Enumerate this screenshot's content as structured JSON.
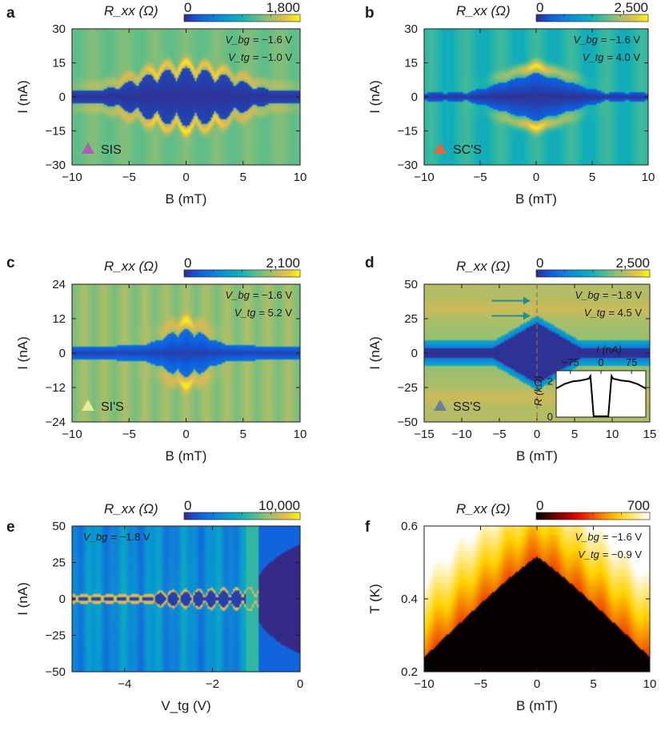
{
  "chart_data": [
    {
      "type": "heatmap",
      "label": "a",
      "colorbar": {
        "title": "R_xx (Ω)",
        "min": "0",
        "max": "1,800",
        "cmap": "parula"
      },
      "xlabel": "B (mT)",
      "ylabel": "I (nA)",
      "xlim": [
        -10,
        10
      ],
      "ylim": [
        -30,
        30
      ],
      "xticks": [
        -10,
        -5,
        0,
        5,
        10
      ],
      "yticks": [
        -30,
        -15,
        0,
        15,
        30
      ],
      "annotations": [
        {
          "name": "V_bg",
          "value": "= −1.6 V"
        },
        {
          "name": "V_tg",
          "value": "= −1.0 V"
        }
      ],
      "marker": {
        "text": "SIS",
        "color": "#b45cb4"
      },
      "features": {
        "kind": "fraunhofer",
        "center_halfwidth": 13,
        "period": 1.7,
        "bg": 0.66,
        "peak_extent": 20
      }
    },
    {
      "type": "heatmap",
      "label": "b",
      "colorbar": {
        "title": "R_xx (Ω)",
        "min": "0",
        "max": "2,500",
        "cmap": "parula"
      },
      "xlabel": "B (mT)",
      "ylabel": "I (nA)",
      "xlim": [
        -10,
        10
      ],
      "ylim": [
        -30,
        30
      ],
      "xticks": [
        -10,
        -5,
        0,
        5,
        10
      ],
      "yticks": [
        -30,
        -15,
        0,
        15,
        30
      ],
      "annotations": [
        {
          "name": "V_bg",
          "value": "= −1.6 V"
        },
        {
          "name": "V_tg",
          "value": "= 4.0 V"
        }
      ],
      "marker": {
        "text": "SC'S",
        "color": "#e8653a"
      },
      "features": {
        "kind": "diamond",
        "center_halfwidth": 10,
        "b_extent": 7,
        "bg": 0.52,
        "peak_extent": 17
      }
    },
    {
      "type": "heatmap",
      "label": "c",
      "colorbar": {
        "title": "R_xx (Ω)",
        "min": "0",
        "max": "2,100",
        "cmap": "parula"
      },
      "xlabel": "B (mT)",
      "ylabel": "I (nA)",
      "xlim": [
        -10,
        10
      ],
      "ylim": [
        -24,
        24
      ],
      "xticks": [
        -10,
        -5,
        0,
        5,
        10
      ],
      "yticks": [
        -24,
        -12,
        0,
        12,
        24
      ],
      "annotations": [
        {
          "name": "V_bg",
          "value": "= −1.6 V"
        },
        {
          "name": "V_tg",
          "value": "= 5.2 V"
        }
      ],
      "marker": {
        "text": "SI'S",
        "color": "#e6ec96"
      },
      "features": {
        "kind": "band",
        "center_halfwidth": 6,
        "period": 1.4,
        "bg": 0.72,
        "peak_extent": 13
      }
    },
    {
      "type": "heatmap",
      "label": "d",
      "colorbar": {
        "title": "R_xx (Ω)",
        "min": "0",
        "max": "2,500",
        "cmap": "parula"
      },
      "xlabel": "B (mT)",
      "ylabel": "I (nA)",
      "xlim": [
        -15,
        15
      ],
      "ylim": [
        -50,
        50
      ],
      "xticks": [
        -15,
        -10,
        -5,
        0,
        5,
        10,
        15
      ],
      "yticks": [
        -50,
        -25,
        0,
        25,
        50
      ],
      "annotations": [
        {
          "name": "V_bg",
          "value": "= −1.8 V"
        },
        {
          "name": "V_tg",
          "value": "= 4.5 V"
        }
      ],
      "marker": {
        "text": "SS'S",
        "color": "#6a7f96"
      },
      "features": {
        "kind": "supercurrent",
        "center_halfwidth": 22,
        "b_extent": 7,
        "bg": 0.8
      },
      "arrows_at_I": [
        38,
        27
      ],
      "dashed_line_at_B": 0,
      "inset": {
        "xlabel": "I (nA)",
        "ylabel": "R (kΩ)",
        "xticks": [
          -75,
          0,
          75
        ],
        "yticks": [
          0,
          2
        ],
        "xlim": [
          -110,
          110
        ],
        "ylim": [
          0,
          2.6
        ],
        "x": [
          -110,
          -90,
          -70,
          -50,
          -30,
          -26,
          -22,
          -18,
          18,
          22,
          26,
          30,
          50,
          70,
          90,
          110
        ],
        "y": [
          1.6,
          1.85,
          2.0,
          2.05,
          2.15,
          2.3,
          1.2,
          0.05,
          0.05,
          1.2,
          2.3,
          2.15,
          2.05,
          2.0,
          1.85,
          1.6
        ]
      }
    },
    {
      "type": "heatmap",
      "label": "e",
      "colorbar": {
        "title": "R_xx (Ω)",
        "min": "0",
        "max": "10,000",
        "cmap": "parula"
      },
      "xlabel": "V_tg (V)",
      "ylabel": "I (nA)",
      "xlim": [
        -5.2,
        0
      ],
      "ylim": [
        -50,
        50
      ],
      "xticks": [
        -4,
        -2,
        0
      ],
      "yticks": [
        -50,
        -25,
        0,
        25,
        50
      ],
      "annotations": [
        {
          "name": "V_bg",
          "value": "= −1.8 V"
        }
      ],
      "features": {
        "kind": "gate_sweep",
        "transition_V": -1.0,
        "bg": 0.3
      }
    },
    {
      "type": "heatmap",
      "label": "f",
      "colorbar": {
        "title": "R_xx (Ω)",
        "min": "0",
        "max": "700",
        "cmap": "hot"
      },
      "xlabel": "B (mT)",
      "ylabel": "T (K)",
      "xlim": [
        -10,
        10
      ],
      "ylim": [
        0.2,
        0.6
      ],
      "xticks": [
        -10,
        -5,
        0,
        5,
        10
      ],
      "yticks": [
        0.2,
        0.4,
        0.6
      ],
      "annotations": [
        {
          "name": "V_bg",
          "value": "= −1.6 V"
        },
        {
          "name": "V_tg",
          "value": "= −0.9 V"
        }
      ],
      "features": {
        "kind": "phase_boundary",
        "Tc0": 0.5,
        "Bc": 10
      }
    }
  ],
  "colors": {
    "text": "#1a1a1a",
    "inset_bg": "#ffffff",
    "arrow": "#2a8c8a",
    "dash": "#a06a3a"
  }
}
